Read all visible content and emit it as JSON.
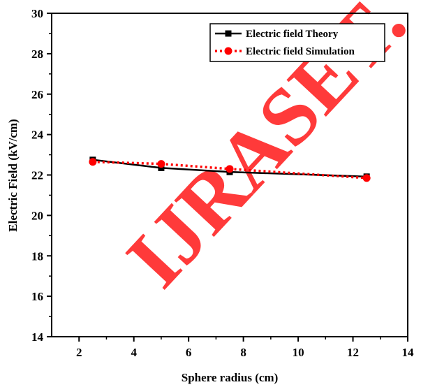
{
  "chart_data": {
    "type": "line",
    "xlabel": "Sphere radius (cm)",
    "ylabel": "Electric Field (kV/cm)",
    "xlim": [
      1,
      14
    ],
    "ylim": [
      14,
      30
    ],
    "xticks": [
      2,
      4,
      6,
      8,
      10,
      12,
      14
    ],
    "yticks": [
      14,
      16,
      18,
      20,
      22,
      24,
      26,
      28,
      30
    ],
    "grid": false,
    "legend_position": "top-right",
    "series": [
      {
        "name": "Electric field Theory",
        "x": [
          2.5,
          5,
          7.5,
          12.5
        ],
        "y": [
          22.75,
          22.35,
          22.15,
          21.92
        ],
        "color": "#000000",
        "line_style": "solid",
        "marker": "square"
      },
      {
        "name": "Electric field Simulation",
        "x": [
          2.5,
          5,
          7.5,
          12.5
        ],
        "y": [
          22.65,
          22.55,
          22.3,
          21.85
        ],
        "color": "#ff0000",
        "line_style": "dotted",
        "marker": "circle"
      }
    ]
  },
  "watermark": {
    "text": "IJRASET.",
    "color": "#ff2a2a"
  }
}
